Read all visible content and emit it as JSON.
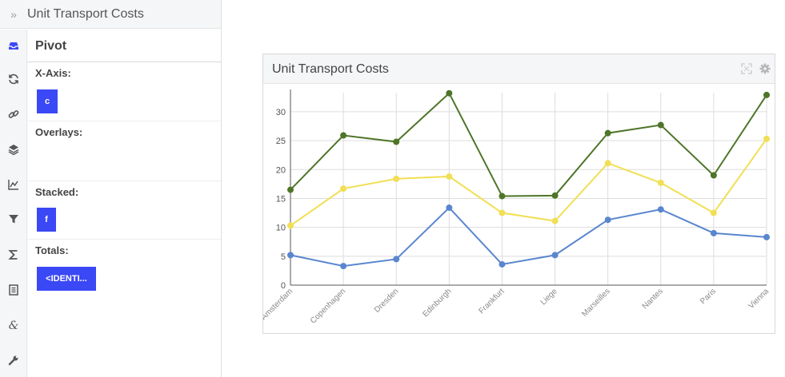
{
  "panel": {
    "title": "Unit Transport Costs",
    "collapse_icon": "»",
    "rail_icons": [
      "inbox-icon",
      "refresh-icon",
      "link-icon",
      "layers-icon",
      "line-chart-icon",
      "filter-icon",
      "sigma-icon",
      "document-icon",
      "ampersand-icon",
      "wrench-icon"
    ],
    "pivot_title": "Pivot",
    "sections": [
      {
        "label": "X-Axis:",
        "chips": [
          "c"
        ]
      },
      {
        "label": "Overlays:",
        "chips": []
      },
      {
        "label": "Stacked:",
        "chips": [
          "f"
        ]
      },
      {
        "label": "Totals:",
        "chips": [
          "<IDENTI..."
        ]
      }
    ]
  },
  "chart_card": {
    "title": "Unit Transport Costs",
    "tools": [
      "expand-icon",
      "gear-icon"
    ]
  },
  "chart_data": {
    "type": "line",
    "categories": [
      "Amsterdam",
      "Copenhagen",
      "Dresden",
      "Edinburgh",
      "Frankfurt",
      "Liege",
      "Marseilles",
      "Nantes",
      "Paris",
      "Vienna"
    ],
    "series": [
      {
        "color": "#4e7528",
        "values": [
          16.5,
          25.9,
          24.8,
          33.2,
          15.4,
          15.5,
          26.3,
          27.7,
          19.0,
          32.9
        ]
      },
      {
        "color": "#f1df55",
        "values": [
          10.3,
          16.7,
          18.4,
          18.8,
          12.5,
          11.1,
          21.1,
          17.7,
          12.5,
          25.3
        ]
      },
      {
        "color": "#5a86cf",
        "values": [
          5.2,
          3.3,
          4.5,
          13.4,
          3.6,
          5.2,
          11.3,
          13.1,
          9.0,
          8.3
        ]
      }
    ],
    "y_ticks": [
      0,
      5,
      10,
      15,
      20,
      25,
      30
    ],
    "ylim": [
      0,
      33.3
    ],
    "grid": true,
    "xlabel": "",
    "ylabel": ""
  }
}
